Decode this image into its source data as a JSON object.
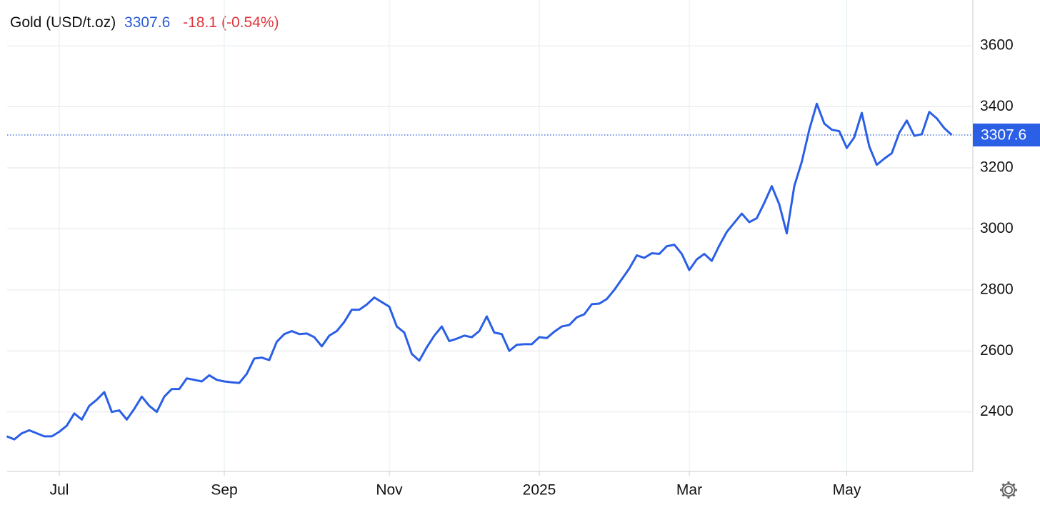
{
  "chart_data": {
    "type": "line",
    "title": "Gold (USD/t.oz)",
    "last": 3307.6,
    "change": -18.1,
    "change_percent": "(-0.54%)",
    "color": "#2a5fe6",
    "categories": [
      null,
      null,
      null,
      null,
      null,
      null,
      null,
      "Jul",
      null,
      null,
      null,
      null,
      null,
      null,
      null,
      null,
      null,
      null,
      null,
      null,
      null,
      null,
      null,
      null,
      null,
      null,
      null,
      null,
      null,
      "Sep",
      null,
      null,
      null,
      null,
      null,
      null,
      null,
      null,
      null,
      null,
      null,
      null,
      null,
      null,
      null,
      null,
      null,
      null,
      null,
      null,
      null,
      "Nov",
      null,
      null,
      null,
      null,
      null,
      null,
      null,
      null,
      null,
      null,
      null,
      null,
      null,
      null,
      null,
      null,
      null,
      null,
      null,
      "2025",
      null,
      null,
      null,
      null,
      null,
      null,
      null,
      null,
      null,
      null,
      null,
      null,
      null,
      null,
      null,
      null,
      null,
      null,
      null,
      "Mar",
      null,
      null,
      null,
      null,
      null,
      null,
      null,
      null,
      null,
      null,
      null,
      null,
      null,
      null,
      null,
      null,
      null,
      null,
      null,
      null,
      "May",
      null,
      null,
      null,
      null,
      null,
      null,
      null,
      null,
      null,
      null,
      null,
      null,
      null,
      null
    ],
    "values": [
      2320,
      2310,
      2330,
      2340,
      2330,
      2320,
      2320,
      2335,
      2355,
      2395,
      2375,
      2420,
      2440,
      2465,
      2400,
      2405,
      2375,
      2410,
      2450,
      2420,
      2400,
      2450,
      2475,
      2475,
      2510,
      2505,
      2500,
      2520,
      2505,
      2500,
      2497,
      2495,
      2525,
      2575,
      2578,
      2570,
      2630,
      2655,
      2665,
      2655,
      2657,
      2645,
      2615,
      2650,
      2665,
      2695,
      2735,
      2735,
      2752,
      2775,
      2760,
      2745,
      2680,
      2660,
      2590,
      2568,
      2612,
      2650,
      2680,
      2632,
      2640,
      2650,
      2645,
      2665,
      2713,
      2660,
      2655,
      2600,
      2620,
      2622,
      2622,
      2645,
      2642,
      2663,
      2680,
      2685,
      2710,
      2720,
      2753,
      2755,
      2770,
      2800,
      2835,
      2870,
      2913,
      2905,
      2920,
      2918,
      2943,
      2948,
      2918,
      2865,
      2900,
      2918,
      2895,
      2945,
      2990,
      3020,
      3050,
      3022,
      3035,
      3085,
      3140,
      3080,
      2985,
      3140,
      3220,
      3325,
      3410,
      3345,
      3325,
      3320,
      3265,
      3300,
      3380,
      3270,
      3210,
      3230,
      3248,
      3315,
      3355,
      3305,
      3310,
      3383,
      3362,
      3330,
      3307.6
    ],
    "ylim": [
      2205,
      3750
    ],
    "yticks": [
      2400,
      2600,
      2800,
      3000,
      3200,
      3400,
      3600
    ],
    "grid": true
  }
}
